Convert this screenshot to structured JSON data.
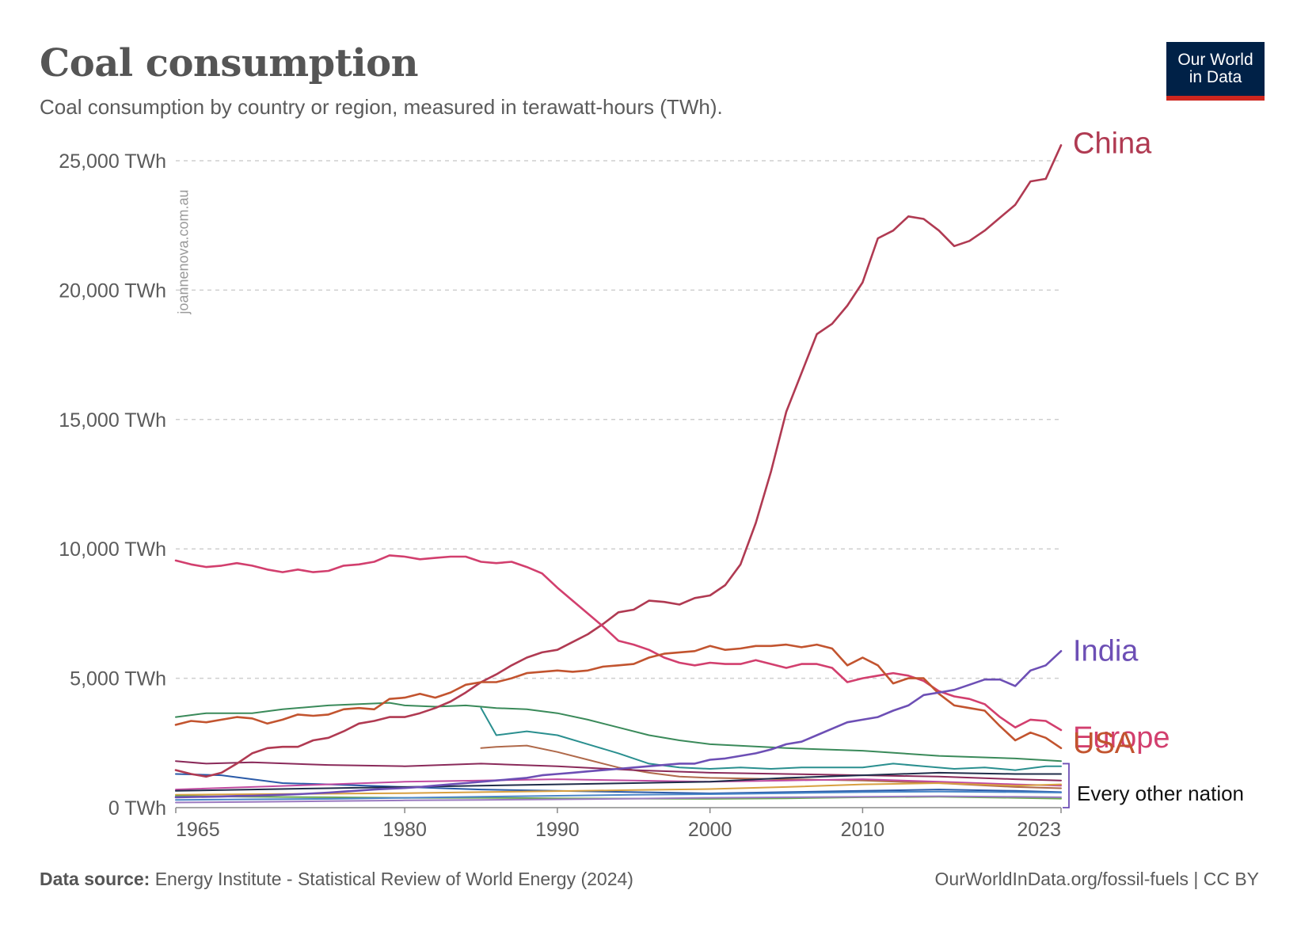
{
  "header": {
    "title": "Coal consumption",
    "subtitle": "Coal consumption by country or region, measured in terawatt-hours (TWh)."
  },
  "logo": {
    "line1": "Our World",
    "line2": "in Data",
    "bg_color": "#002147",
    "accent_color": "#ce261e"
  },
  "watermark": "joannenova.com.au",
  "footer": {
    "source_label": "Data source:",
    "source_text": "Energy Institute - Statistical Review of World Energy (2024)",
    "right_text": "OurWorldInData.org/fossil-fuels | CC BY"
  },
  "chart_data": {
    "type": "line",
    "title": "Coal consumption",
    "subtitle": "Coal consumption by country or region, measured in terawatt-hours (TWh).",
    "xlim": [
      1965,
      2023
    ],
    "ylim": [
      0,
      25000
    ],
    "x_ticks": [
      1965,
      1980,
      1990,
      2000,
      2010,
      2023
    ],
    "y_ticks": [
      0,
      5000,
      10000,
      15000,
      20000,
      25000
    ],
    "y_tick_labels": [
      "0 TWh",
      "5,000 TWh",
      "10,000 TWh",
      "15,000 TWh",
      "20,000 TWh",
      "25,000 TWh"
    ],
    "grid": "horizontal dashed",
    "legend": "direct labels at right",
    "bracket_label": "Every other nation",
    "series": [
      {
        "name": "China",
        "color": "#b03a52",
        "label_color": "#b03a52",
        "x": [
          1965,
          1966,
          1967,
          1968,
          1969,
          1970,
          1971,
          1972,
          1973,
          1974,
          1975,
          1976,
          1977,
          1978,
          1979,
          1980,
          1981,
          1982,
          1983,
          1984,
          1985,
          1986,
          1987,
          1988,
          1989,
          1990,
          1991,
          1992,
          1993,
          1994,
          1995,
          1996,
          1997,
          1998,
          1999,
          2000,
          2001,
          2002,
          2003,
          2004,
          2005,
          2006,
          2007,
          2008,
          2009,
          2010,
          2011,
          2012,
          2013,
          2014,
          2015,
          2016,
          2017,
          2018,
          2019,
          2020,
          2021,
          2022,
          2023
        ],
        "values": [
          1450,
          1300,
          1200,
          1350,
          1700,
          2100,
          2300,
          2350,
          2350,
          2600,
          2700,
          2950,
          3250,
          3350,
          3500,
          3500,
          3650,
          3850,
          4100,
          4450,
          4850,
          5150,
          5500,
          5800,
          6000,
          6100,
          6400,
          6700,
          7100,
          7550,
          7650,
          8000,
          7950,
          7850,
          8100,
          8200,
          8600,
          9400,
          11000,
          13000,
          15300,
          16800,
          18300,
          18700,
          19400,
          20300,
          22000,
          22300,
          22850,
          22750,
          22300,
          21700,
          21900,
          22300,
          22800,
          23300,
          24200,
          24300,
          25600
        ]
      },
      {
        "name": "Europe",
        "color": "#d23f6e",
        "label_color": "#d23f6e",
        "x": [
          1965,
          1966,
          1967,
          1968,
          1969,
          1970,
          1971,
          1972,
          1973,
          1974,
          1975,
          1976,
          1977,
          1978,
          1979,
          1980,
          1981,
          1982,
          1983,
          1984,
          1985,
          1986,
          1987,
          1988,
          1989,
          1990,
          1991,
          1992,
          1993,
          1994,
          1995,
          1996,
          1997,
          1998,
          1999,
          2000,
          2001,
          2002,
          2003,
          2004,
          2005,
          2006,
          2007,
          2008,
          2009,
          2010,
          2011,
          2012,
          2013,
          2014,
          2015,
          2016,
          2017,
          2018,
          2019,
          2020,
          2021,
          2022,
          2023
        ],
        "values": [
          9550,
          9400,
          9300,
          9350,
          9450,
          9350,
          9200,
          9100,
          9200,
          9100,
          9150,
          9350,
          9400,
          9500,
          9750,
          9700,
          9600,
          9650,
          9700,
          9700,
          9500,
          9450,
          9500,
          9300,
          9050,
          8500,
          8000,
          7500,
          7000,
          6450,
          6300,
          6100,
          5800,
          5600,
          5500,
          5600,
          5550,
          5550,
          5700,
          5550,
          5400,
          5550,
          5550,
          5400,
          4850,
          5000,
          5100,
          5200,
          5100,
          4900,
          4500,
          4300,
          4200,
          4000,
          3500,
          3100,
          3400,
          3350,
          3000
        ]
      },
      {
        "name": "USA",
        "color": "#c2542f",
        "label_color": "#c2542f",
        "x": [
          1965,
          1966,
          1967,
          1968,
          1969,
          1970,
          1971,
          1972,
          1973,
          1974,
          1975,
          1976,
          1977,
          1978,
          1979,
          1980,
          1981,
          1982,
          1983,
          1984,
          1985,
          1986,
          1987,
          1988,
          1989,
          1990,
          1991,
          1992,
          1993,
          1994,
          1995,
          1996,
          1997,
          1998,
          1999,
          2000,
          2001,
          2002,
          2003,
          2004,
          2005,
          2006,
          2007,
          2008,
          2009,
          2010,
          2011,
          2012,
          2013,
          2014,
          2015,
          2016,
          2017,
          2018,
          2019,
          2020,
          2021,
          2022,
          2023
        ],
        "values": [
          3200,
          3350,
          3300,
          3400,
          3500,
          3450,
          3250,
          3400,
          3600,
          3550,
          3600,
          3800,
          3850,
          3800,
          4200,
          4250,
          4400,
          4250,
          4450,
          4750,
          4850,
          4850,
          5000,
          5200,
          5250,
          5300,
          5250,
          5300,
          5450,
          5500,
          5550,
          5800,
          5950,
          6000,
          6050,
          6250,
          6100,
          6150,
          6250,
          6250,
          6300,
          6200,
          6300,
          6150,
          5500,
          5800,
          5500,
          4800,
          5000,
          5000,
          4400,
          3950,
          3850,
          3750,
          3150,
          2600,
          2900,
          2700,
          2300
        ]
      },
      {
        "name": "India",
        "color": "#6d4fb5",
        "label_color": "#6d4fb5",
        "x": [
          1965,
          1966,
          1967,
          1968,
          1969,
          1970,
          1971,
          1972,
          1973,
          1974,
          1975,
          1976,
          1977,
          1978,
          1979,
          1980,
          1981,
          1982,
          1983,
          1984,
          1985,
          1986,
          1987,
          1988,
          1989,
          1990,
          1991,
          1992,
          1993,
          1994,
          1995,
          1996,
          1997,
          1998,
          1999,
          2000,
          2001,
          2002,
          2003,
          2004,
          2005,
          2006,
          2007,
          2008,
          2009,
          2010,
          2011,
          2012,
          2013,
          2014,
          2015,
          2016,
          2017,
          2018,
          2019,
          2020,
          2021,
          2022,
          2023
        ],
        "values": [
          400,
          410,
          420,
          430,
          450,
          460,
          480,
          500,
          520,
          550,
          580,
          620,
          660,
          700,
          730,
          760,
          800,
          850,
          900,
          950,
          1000,
          1050,
          1100,
          1150,
          1250,
          1300,
          1350,
          1400,
          1450,
          1500,
          1550,
          1600,
          1650,
          1700,
          1700,
          1850,
          1900,
          2000,
          2100,
          2250,
          2450,
          2550,
          2800,
          3050,
          3300,
          3400,
          3500,
          3750,
          3950,
          4350,
          4450,
          4550,
          4750,
          4950,
          4950,
          4700,
          5300,
          5500,
          6050
        ]
      },
      {
        "name": "",
        "color": "#3a8a5a",
        "x": [
          1965,
          1967,
          1970,
          1972,
          1975,
          1977,
          1979,
          1980,
          1982,
          1984,
          1985,
          1986,
          1988,
          1990,
          1992,
          1994,
          1996,
          1998,
          2000,
          2005,
          2010,
          2015,
          2020,
          2023
        ],
        "values": [
          3500,
          3650,
          3650,
          3800,
          3950,
          4000,
          4050,
          3950,
          3900,
          3950,
          3900,
          3850,
          3800,
          3650,
          3400,
          3100,
          2800,
          2600,
          2450,
          2300,
          2200,
          2000,
          1900,
          1800
        ]
      },
      {
        "name": "",
        "color": "#2a8f8f",
        "x": [
          1985,
          1986,
          1988,
          1990,
          1992,
          1994,
          1996,
          1998,
          2000,
          2002,
          2004,
          2006,
          2008,
          2010,
          2012,
          2014,
          2016,
          2018,
          2020,
          2022,
          2023
        ],
        "values": [
          3850,
          2800,
          2950,
          2800,
          2450,
          2100,
          1700,
          1550,
          1500,
          1550,
          1500,
          1550,
          1550,
          1550,
          1700,
          1600,
          1500,
          1550,
          1450,
          1600,
          1600
        ]
      },
      {
        "name": "",
        "color": "#b0694a",
        "x": [
          1985,
          1986,
          1988,
          1990,
          1992,
          1994,
          1996,
          1998,
          2000,
          2005,
          2010,
          2015,
          2020,
          2023
        ],
        "values": [
          2300,
          2350,
          2400,
          2150,
          1850,
          1550,
          1350,
          1200,
          1150,
          1100,
          1050,
          950,
          800,
          750
        ]
      },
      {
        "name": "",
        "color": "#8a2a5a",
        "x": [
          1965,
          1967,
          1970,
          1975,
          1980,
          1985,
          1990,
          1995,
          2000,
          2005,
          2010,
          2015,
          2020,
          2023
        ],
        "values": [
          1800,
          1700,
          1750,
          1650,
          1600,
          1700,
          1600,
          1450,
          1350,
          1300,
          1250,
          1200,
          1100,
          1050
        ]
      },
      {
        "name": "",
        "color": "#2a5aa8",
        "x": [
          1965,
          1968,
          1970,
          1972,
          1975,
          1980,
          1985,
          1990,
          1995,
          2000,
          2005,
          2010,
          2015,
          2020,
          2023
        ],
        "values": [
          1300,
          1250,
          1100,
          950,
          900,
          800,
          700,
          650,
          600,
          550,
          600,
          650,
          700,
          650,
          600
        ]
      },
      {
        "name": "",
        "color": "#c04aa0",
        "x": [
          1965,
          1970,
          1975,
          1980,
          1985,
          1990,
          1995,
          2000,
          2005,
          2010,
          2015,
          2020,
          2023
        ],
        "values": [
          700,
          800,
          900,
          1000,
          1050,
          1100,
          1050,
          1000,
          1050,
          1100,
          1000,
          900,
          850
        ]
      },
      {
        "name": "",
        "color": "#1f2d4a",
        "x": [
          1965,
          1970,
          1975,
          1980,
          1985,
          1990,
          1995,
          2000,
          2005,
          2010,
          2015,
          2020,
          2023
        ],
        "values": [
          650,
          700,
          750,
          800,
          850,
          900,
          950,
          1000,
          1150,
          1250,
          1350,
          1300,
          1300
        ]
      },
      {
        "name": "",
        "color": "#d8a040",
        "x": [
          1965,
          1970,
          1975,
          1980,
          1985,
          1990,
          1995,
          2000,
          2005,
          2010,
          2015,
          2020,
          2023
        ],
        "values": [
          500,
          520,
          540,
          560,
          600,
          640,
          680,
          720,
          800,
          900,
          950,
          850,
          900
        ]
      },
      {
        "name": "",
        "color": "#6aa84f",
        "x": [
          1965,
          1970,
          1975,
          1980,
          1985,
          1990,
          1995,
          2000,
          2005,
          2010,
          2015,
          2020,
          2023
        ],
        "values": [
          450,
          420,
          400,
          380,
          380,
          360,
          350,
          340,
          360,
          400,
          420,
          380,
          350
        ]
      },
      {
        "name": "",
        "color": "#4a86c8",
        "x": [
          1965,
          1970,
          1975,
          1980,
          1985,
          1990,
          1995,
          2000,
          2005,
          2010,
          2015,
          2020,
          2023
        ],
        "values": [
          300,
          320,
          340,
          380,
          420,
          460,
          500,
          520,
          560,
          600,
          620,
          600,
          580
        ]
      },
      {
        "name": "",
        "color": "#9a7ac0",
        "x": [
          1965,
          1970,
          1975,
          1980,
          1985,
          1990,
          1995,
          2000,
          2005,
          2010,
          2015,
          2020,
          2023
        ],
        "values": [
          200,
          220,
          250,
          280,
          300,
          320,
          350,
          380,
          400,
          420,
          440,
          420,
          400
        ]
      }
    ]
  }
}
